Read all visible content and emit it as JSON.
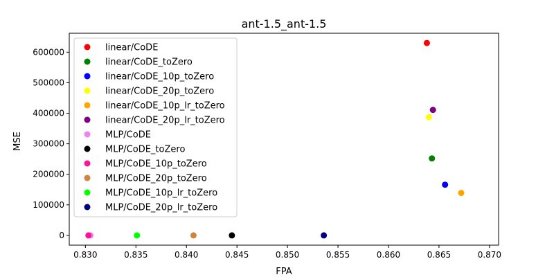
{
  "chart_data": {
    "type": "scatter",
    "title": "ant-1.5_ant-1.5",
    "xlabel": "FPA",
    "ylabel": "MSE",
    "xlim": [
      0.8284,
      0.8709
    ],
    "ylim": [
      -32000,
      662000
    ],
    "xticks": [
      0.83,
      0.835,
      0.84,
      0.845,
      0.85,
      0.855,
      0.86,
      0.865,
      0.87
    ],
    "xtick_labels": [
      "0.830",
      "0.835",
      "0.840",
      "0.845",
      "0.850",
      "0.855",
      "0.860",
      "0.865",
      "0.870"
    ],
    "yticks": [
      0,
      100000,
      200000,
      300000,
      400000,
      500000,
      600000
    ],
    "ytick_labels": [
      "0",
      "100000",
      "200000",
      "300000",
      "400000",
      "500000",
      "600000"
    ],
    "grid": false,
    "legend_position": "top-left",
    "series": [
      {
        "name": "linear/CoDE",
        "color": "#ff0000",
        "x": 0.8638,
        "y": 630000
      },
      {
        "name": "linear/CoDE_toZero",
        "color": "#008000",
        "x": 0.8643,
        "y": 252000
      },
      {
        "name": "linear/CoDE_10p_toZero",
        "color": "#0000ff",
        "x": 0.8656,
        "y": 166000
      },
      {
        "name": "linear/CoDE_20p_toZero",
        "color": "#ffff00",
        "x": 0.864,
        "y": 387000
      },
      {
        "name": "linear/CoDE_10p_lr_toZero",
        "color": "#ffa500",
        "x": 0.8672,
        "y": 139000
      },
      {
        "name": "linear/CoDE_20p_lr_toZero",
        "color": "#800080",
        "x": 0.8644,
        "y": 411000
      },
      {
        "name": "MLP/CoDE",
        "color": "#ee82ee",
        "x": 0.8305,
        "y": 0
      },
      {
        "name": "MLP/CoDE_toZero",
        "color": "#000000",
        "x": 0.8445,
        "y": 0
      },
      {
        "name": "MLP/CoDE_10p_toZero",
        "color": "#ff1493",
        "x": 0.8303,
        "y": 0
      },
      {
        "name": "MLP/CoDE_20p_toZero",
        "color": "#cd853f",
        "x": 0.8407,
        "y": 0
      },
      {
        "name": "MLP/CoDE_10p_lr_toZero",
        "color": "#00ff00",
        "x": 0.8351,
        "y": 0
      },
      {
        "name": "MLP/CoDE_20p_lr_toZero",
        "color": "#000080",
        "x": 0.8536,
        "y": 0
      }
    ]
  }
}
